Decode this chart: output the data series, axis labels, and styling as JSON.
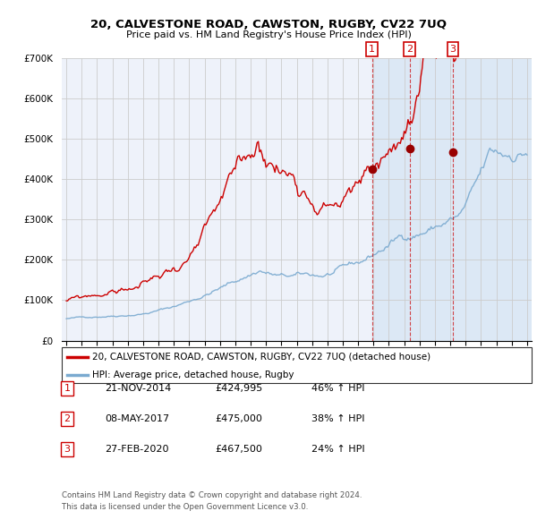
{
  "title": "20, CALVESTONE ROAD, CAWSTON, RUGBY, CV22 7UQ",
  "subtitle": "Price paid vs. HM Land Registry's House Price Index (HPI)",
  "legend_property": "20, CALVESTONE ROAD, CAWSTON, RUGBY, CV22 7UQ (detached house)",
  "legend_hpi": "HPI: Average price, detached house, Rugby",
  "footer1": "Contains HM Land Registry data © Crown copyright and database right 2024.",
  "footer2": "This data is licensed under the Open Government Licence v3.0.",
  "transactions": [
    {
      "num": 1,
      "date": "21-NOV-2014",
      "price": "£424,995",
      "change": "46% ↑ HPI"
    },
    {
      "num": 2,
      "date": "08-MAY-2017",
      "price": "£475,000",
      "change": "38% ↑ HPI"
    },
    {
      "num": 3,
      "date": "27-FEB-2020",
      "price": "£467,500",
      "change": "24% ↑ HPI"
    }
  ],
  "sale_dates_decimal": [
    2014.896,
    2017.354,
    2020.163
  ],
  "sale_prices": [
    424995,
    475000,
    467500
  ],
  "property_color": "#cc0000",
  "hpi_color": "#7aaad0",
  "background_plot": "#eef2fa",
  "background_shade": "#dce8f5",
  "grid_color": "#cccccc",
  "ylim": [
    0,
    700000
  ],
  "xlim_start": 1994.7,
  "xlim_end": 2025.3
}
